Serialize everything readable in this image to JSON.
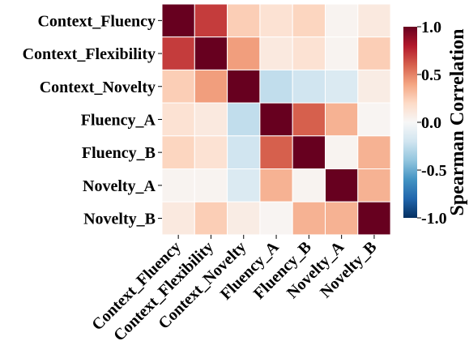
{
  "chart_data": {
    "type": "heatmap",
    "title": "",
    "xlabel": "",
    "ylabel": "",
    "x_categories": [
      "Context_Fluency",
      "Context_Flexibility",
      "Context_Novelty",
      "Fluency_A",
      "Fluency_B",
      "Novelty_A",
      "Novelty_B"
    ],
    "y_categories": [
      "Context_Fluency",
      "Context_Flexibility",
      "Context_Novelty",
      "Fluency_A",
      "Fluency_B",
      "Novelty_A",
      "Novelty_B"
    ],
    "values": [
      [
        1.0,
        0.7,
        0.25,
        0.15,
        0.22,
        0.03,
        0.1
      ],
      [
        0.7,
        1.0,
        0.42,
        0.1,
        0.15,
        0.03,
        0.25
      ],
      [
        0.25,
        0.42,
        1.0,
        -0.25,
        -0.2,
        -0.15,
        0.08
      ],
      [
        0.15,
        0.1,
        -0.25,
        1.0,
        0.6,
        0.35,
        0.02
      ],
      [
        0.22,
        0.15,
        -0.2,
        0.6,
        1.0,
        0.03,
        0.35
      ],
      [
        0.03,
        0.03,
        -0.15,
        0.35,
        0.03,
        1.0,
        0.35
      ],
      [
        0.1,
        0.25,
        0.08,
        0.02,
        0.35,
        0.35,
        1.0
      ]
    ],
    "colorbar": {
      "label": "Spearman Correlation",
      "min": -1.0,
      "max": 1.0,
      "ticks": [
        "1.0",
        "0.5",
        "0.0",
        "-0.5",
        "-1.0"
      ],
      "colormap": "RdBu_r"
    },
    "grid": true,
    "cell_border_color": "#ffffff"
  }
}
